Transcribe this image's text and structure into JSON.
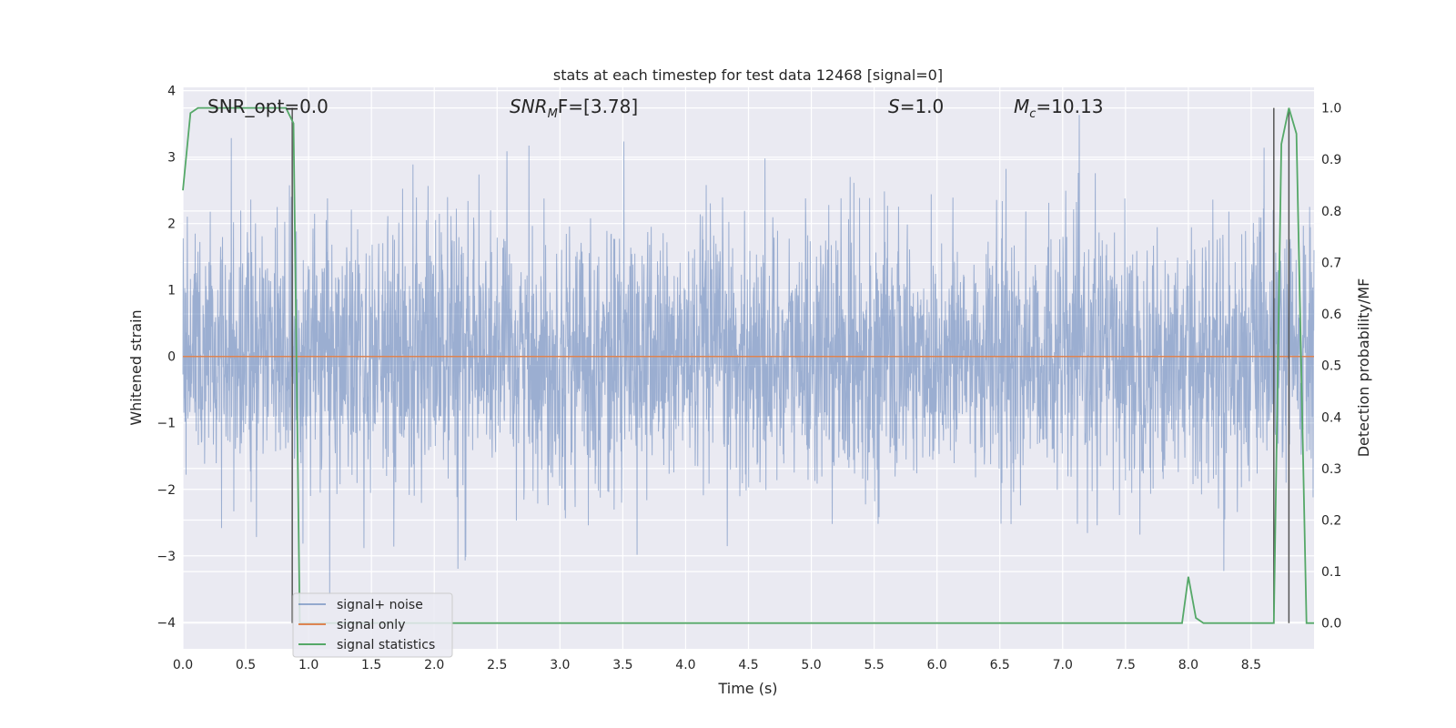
{
  "chart_data": {
    "type": "line",
    "title": "stats at each timestep for test data 12468 [signal=0]",
    "xlabel": "Time (s)",
    "ylabel_left": "Whitened strain",
    "ylabel_right": "Detection probability/MF",
    "xlim": [
      0.0,
      9.0
    ],
    "ylim_left": [
      -4.4,
      4.05
    ],
    "ylim_right": [
      -0.05,
      1.04
    ],
    "x_ticks": [
      "0.0",
      "0.5",
      "1.0",
      "1.5",
      "2.0",
      "2.5",
      "3.0",
      "3.5",
      "4.0",
      "4.5",
      "5.0",
      "5.5",
      "6.0",
      "6.5",
      "7.0",
      "7.5",
      "8.0",
      "8.5"
    ],
    "x_tick_values": [
      0,
      0.5,
      1,
      1.5,
      2,
      2.5,
      3,
      3.5,
      4,
      4.5,
      5,
      5.5,
      6,
      6.5,
      7,
      7.5,
      8,
      8.5
    ],
    "y_left_ticks": [
      "4",
      "3",
      "2",
      "1",
      "0",
      "−1",
      "−2",
      "−3",
      "−4"
    ],
    "y_left_tick_values": [
      4,
      3,
      2,
      1,
      0,
      -1,
      -2,
      -3,
      -4
    ],
    "y_right_ticks": [
      "1.0",
      "0.9",
      "0.8",
      "0.7",
      "0.6",
      "0.5",
      "0.4",
      "0.3",
      "0.2",
      "0.1",
      "0.0"
    ],
    "y_right_tick_values": [
      1.0,
      0.9,
      0.8,
      0.7,
      0.6,
      0.5,
      0.4,
      0.3,
      0.2,
      0.1,
      0.0
    ],
    "annotations": {
      "snr_opt": "SNR_opt=0.0",
      "snr_mf_main": "SNR",
      "snr_mf_sub": "M",
      "snr_mf_rest": "F=[3.78]",
      "s_var": "S",
      "s_rest": "=1.0",
      "mc_var": "M",
      "mc_sub": "c",
      "mc_rest": "=10.13"
    },
    "legend": {
      "placement": "lower-left",
      "entries": [
        "signal+ noise",
        "signal only",
        "signal statistics"
      ]
    },
    "series": [
      {
        "name": "signal+ noise",
        "axis": "left",
        "color": "#4c72b0",
        "kind": "noise",
        "x_range": [
          0.0,
          9.0
        ],
        "approx_std": 0.95,
        "approx_min": -3.8,
        "approx_max": 3.7
      },
      {
        "name": "signal only",
        "axis": "left",
        "color": "#dd8452",
        "x": [
          0.0,
          9.0
        ],
        "y": [
          0.0,
          0.0
        ]
      },
      {
        "name": "signal statistics",
        "axis": "right",
        "color": "#55a868",
        "x": [
          0.0,
          0.06,
          0.12,
          0.2,
          0.3,
          0.5,
          0.7,
          0.82,
          0.88,
          0.93,
          0.98,
          7.95,
          8.0,
          8.06,
          8.12,
          8.4,
          8.68,
          8.74,
          8.8,
          8.86,
          8.94,
          9.0
        ],
        "y": [
          0.84,
          0.99,
          1.0,
          1.0,
          1.0,
          1.0,
          1.0,
          1.0,
          0.97,
          0.0,
          0.0,
          0.0,
          0.09,
          0.01,
          0.0,
          0.0,
          0.0,
          0.93,
          1.0,
          0.95,
          0.0,
          0.0
        ]
      },
      {
        "name": "vertical markers",
        "axis": "right",
        "color": "#555555",
        "x": [
          0.87,
          8.68,
          8.8
        ],
        "y_range": [
          0.0,
          1.0
        ]
      }
    ]
  }
}
